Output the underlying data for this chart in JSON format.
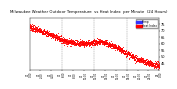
{
  "title": "Milwaukee Weather Outdoor Temperature  vs Heat Index  per Minute  (24 Hours)",
  "title_fontsize": 2.8,
  "background_color": "#ffffff",
  "plot_bg_color": "#ffffff",
  "ylim": [
    40,
    80
  ],
  "yticks": [
    45,
    50,
    55,
    60,
    65,
    70,
    75
  ],
  "ytick_fontsize": 2.5,
  "xtick_fontsize": 1.8,
  "legend_labels": [
    "Temp",
    "Heat Index"
  ],
  "legend_colors": [
    "#0000cc",
    "#cc0000"
  ],
  "legend_bar_colors": [
    "#3333ff",
    "#ff0000"
  ],
  "grid_color": "#888888",
  "dot_color_temp": "#ff0000",
  "dot_color_hi": "#ff0000",
  "dot_size": 0.4,
  "n_points": 1440,
  "vline_positions": [
    360,
    720,
    1080
  ],
  "x_tick_positions": [
    0,
    120,
    240,
    360,
    480,
    600,
    720,
    840,
    960,
    1080,
    1200,
    1320,
    1439
  ],
  "x_tick_labels": [
    "01\n0:00",
    "01\n2:00",
    "01\n4:00",
    "01\n6:00",
    "01\n8:00",
    "01\n10:00",
    "01\n12:00",
    "01\n14:00",
    "01\n16:00",
    "01\n18:00",
    "01\n20:00",
    "01\n22:00",
    "02\n0:00"
  ]
}
